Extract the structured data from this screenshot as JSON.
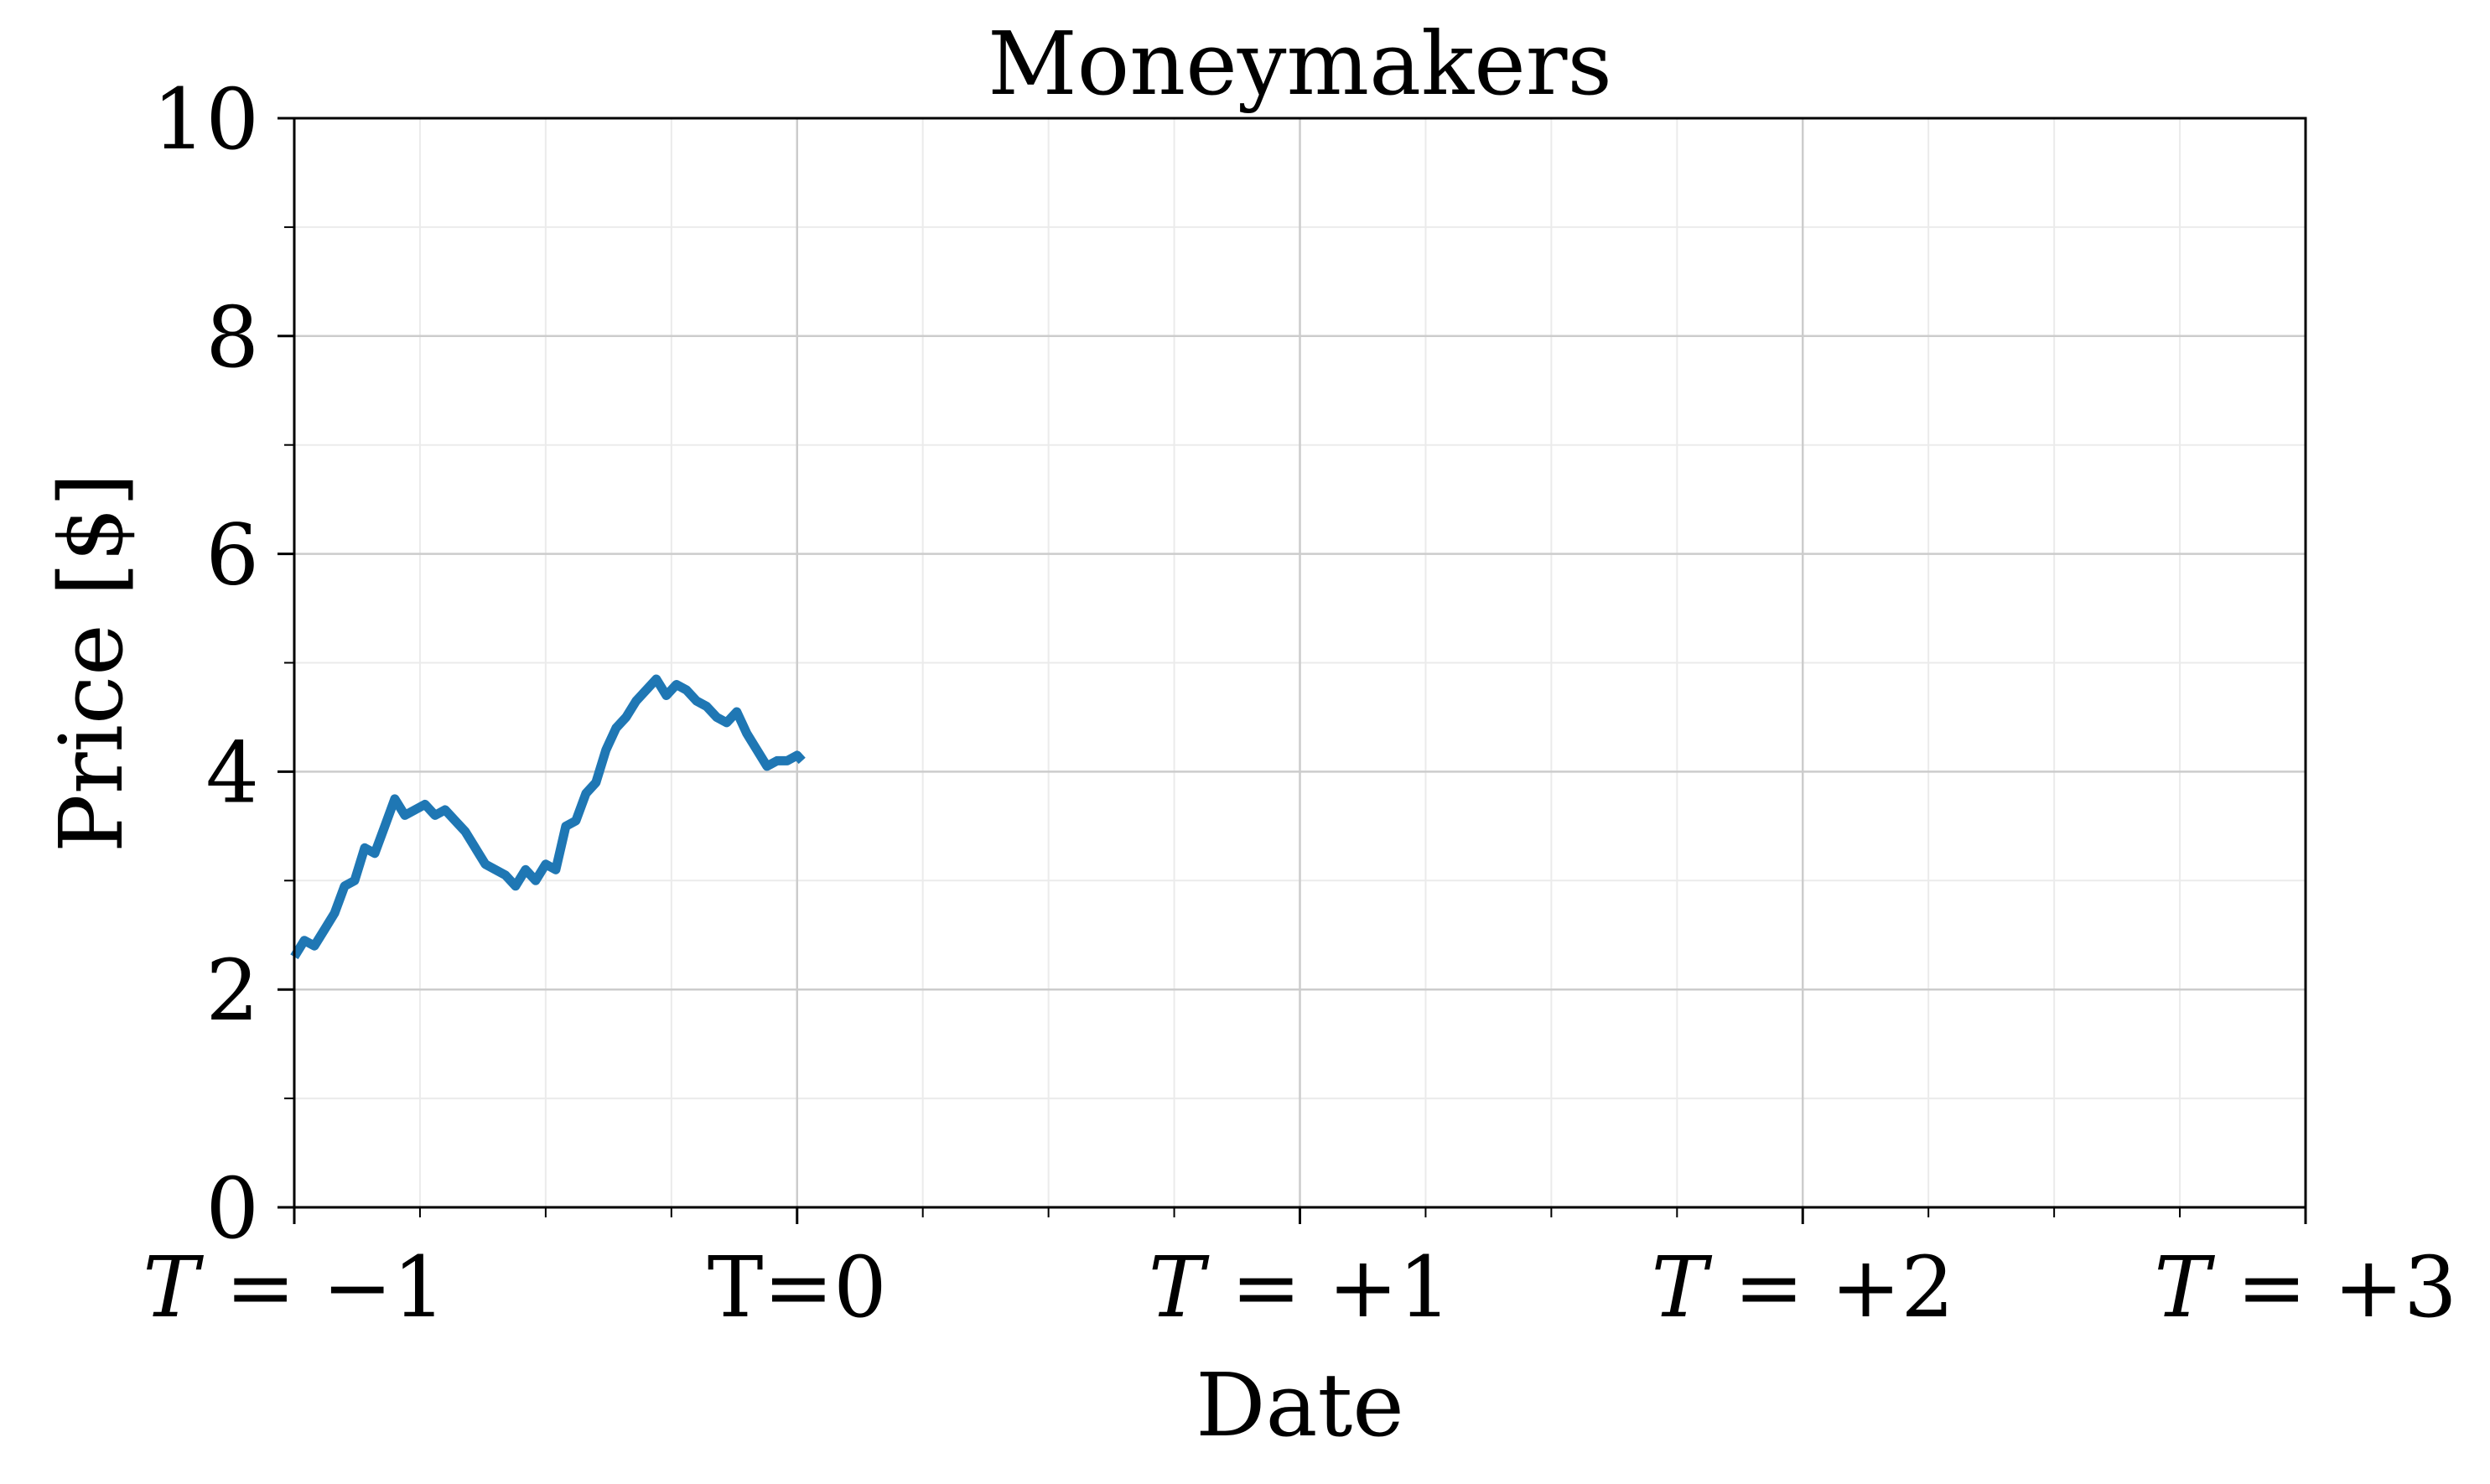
{
  "chart_data": {
    "type": "line",
    "title": "Moneymakers",
    "xlabel": "Date",
    "ylabel": "Price [$]",
    "xlim": [
      -1,
      3
    ],
    "ylim": [
      0,
      10
    ],
    "x_ticks": [
      {
        "value": -1,
        "label": "T = −1",
        "style": "math"
      },
      {
        "value": 0,
        "label": "T=0",
        "style": "plain"
      },
      {
        "value": 1,
        "label": "T = +1",
        "style": "math"
      },
      {
        "value": 2,
        "label": "T = +2",
        "style": "math"
      },
      {
        "value": 3,
        "label": "T = +3",
        "style": "math"
      }
    ],
    "x_minor_step": 0.25,
    "y_ticks": [
      0,
      2,
      4,
      6,
      8,
      10
    ],
    "y_minor_step": 1,
    "grid": true,
    "series": [
      {
        "color": "#1f77b4",
        "x": [
          -1.0,
          -0.98,
          -0.96,
          -0.94,
          -0.92,
          -0.9,
          -0.88,
          -0.86,
          -0.84,
          -0.82,
          -0.8,
          -0.78,
          -0.76,
          -0.74,
          -0.72,
          -0.7,
          -0.68,
          -0.66,
          -0.64,
          -0.62,
          -0.6,
          -0.58,
          -0.56,
          -0.54,
          -0.52,
          -0.5,
          -0.48,
          -0.46,
          -0.44,
          -0.42,
          -0.4,
          -0.38,
          -0.36,
          -0.34,
          -0.32,
          -0.3,
          -0.28,
          -0.26,
          -0.24,
          -0.22,
          -0.2,
          -0.18,
          -0.16,
          -0.14,
          -0.12,
          -0.1,
          -0.08,
          -0.06,
          -0.04,
          -0.02,
          0.0,
          0.01
        ],
        "y": [
          2.3,
          2.45,
          2.4,
          2.55,
          2.7,
          2.95,
          3.0,
          3.3,
          3.25,
          3.5,
          3.75,
          3.6,
          3.65,
          3.7,
          3.6,
          3.65,
          3.55,
          3.45,
          3.3,
          3.15,
          3.1,
          3.05,
          2.95,
          3.1,
          3.0,
          3.15,
          3.1,
          3.5,
          3.55,
          3.8,
          3.9,
          4.2,
          4.4,
          4.5,
          4.65,
          4.75,
          4.85,
          4.7,
          4.8,
          4.75,
          4.65,
          4.6,
          4.5,
          4.45,
          4.55,
          4.35,
          4.2,
          4.05,
          4.1,
          4.1,
          4.15,
          4.1
        ]
      }
    ]
  }
}
